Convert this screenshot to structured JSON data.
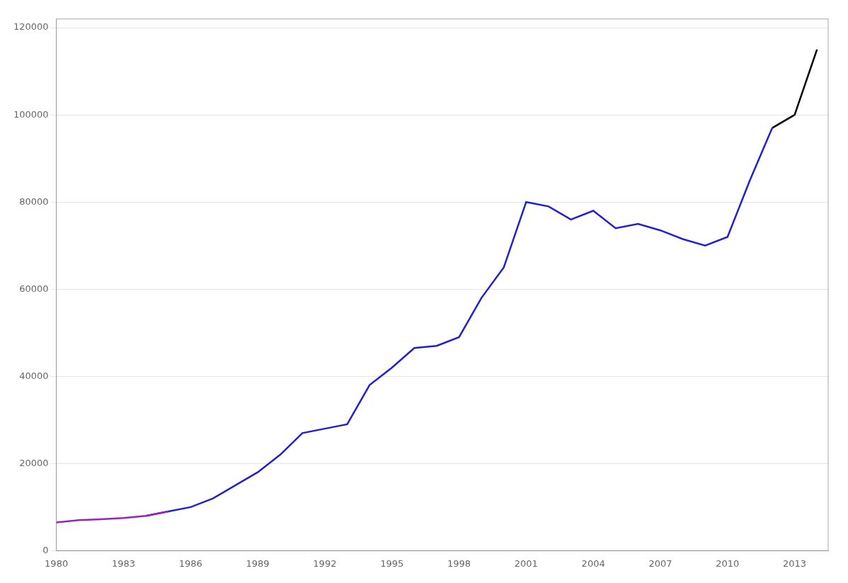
{
  "chart_data": {
    "type": "line",
    "x": [
      1980,
      1981,
      1982,
      1983,
      1984,
      1985,
      1986,
      1987,
      1988,
      1989,
      1990,
      1991,
      1992,
      1993,
      1994,
      1995,
      1996,
      1997,
      1998,
      1999,
      2000,
      2001,
      2002,
      2003,
      2004,
      2005,
      2006,
      2007,
      2008,
      2009,
      2010,
      2011,
      2012,
      2013,
      2014
    ],
    "series": [
      {
        "color": "#9922bb",
        "values": [
          6500,
          7000,
          7200,
          7500,
          8000,
          9000,
          null,
          null,
          null,
          null,
          null,
          null,
          null,
          null,
          null,
          null,
          null,
          null,
          null,
          null,
          null,
          null,
          null,
          null,
          null,
          null,
          null,
          null,
          null,
          null,
          null,
          null,
          null,
          null,
          null
        ]
      },
      {
        "color": "#2222cc",
        "values": [
          null,
          null,
          null,
          null,
          8000,
          9000,
          10000,
          12000,
          15000,
          18000,
          22000,
          27000,
          28000,
          29000,
          38000,
          42000,
          46500,
          47000,
          49000,
          58000,
          65000,
          80000,
          79000,
          76000,
          78000,
          74000,
          75000,
          73500,
          71500,
          70000,
          72000,
          85000,
          97000,
          null,
          null
        ]
      },
      {
        "color": "#000000",
        "values": [
          null,
          null,
          null,
          null,
          null,
          null,
          null,
          null,
          null,
          null,
          null,
          null,
          null,
          null,
          null,
          null,
          null,
          null,
          null,
          null,
          null,
          null,
          null,
          null,
          null,
          null,
          null,
          null,
          null,
          null,
          null,
          null,
          97000,
          100000,
          115000
        ]
      }
    ],
    "xlim": [
      1980,
      2014.5
    ],
    "ylim": [
      0,
      122000
    ],
    "xticks": [
      1980,
      1983,
      1986,
      1989,
      1992,
      1995,
      1998,
      2001,
      2004,
      2007,
      2010,
      2013
    ],
    "yticks": [
      0,
      20000,
      40000,
      60000,
      80000,
      100000,
      120000
    ],
    "grid": "y"
  }
}
